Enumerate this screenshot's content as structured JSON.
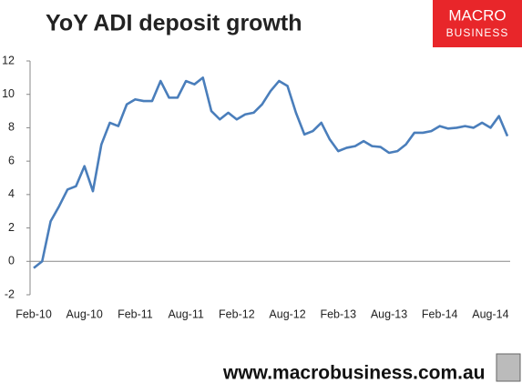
{
  "chart_data": {
    "type": "line",
    "title": "YoY ADI deposit growth",
    "categories": [
      "Feb-10",
      null,
      null,
      null,
      null,
      null,
      "Aug-10",
      null,
      null,
      null,
      null,
      null,
      "Feb-11",
      null,
      null,
      null,
      null,
      null,
      "Aug-11",
      null,
      null,
      null,
      null,
      null,
      "Feb-12",
      null,
      null,
      null,
      null,
      null,
      "Aug-12",
      null,
      null,
      null,
      null,
      null,
      "Feb-13",
      null,
      null,
      null,
      null,
      null,
      "Aug-13",
      null,
      null,
      null,
      null,
      null,
      "Feb-14",
      null,
      null,
      null,
      null,
      null,
      "Aug-14",
      null,
      null
    ],
    "series": [
      {
        "name": "YoY ADI deposit growth",
        "color": "#4a7ebb",
        "values": [
          -0.4,
          0,
          2.4,
          3.3,
          4.3,
          4.5,
          5.7,
          4.2,
          7.0,
          8.3,
          8.1,
          9.4,
          9.7,
          9.6,
          9.6,
          10.8,
          9.8,
          9.8,
          10.8,
          10.6,
          11.0,
          9.0,
          8.5,
          8.9,
          8.5,
          8.8,
          8.9,
          9.4,
          10.2,
          10.8,
          10.5,
          8.9,
          7.6,
          7.8,
          8.3,
          7.3,
          6.6,
          6.8,
          6.9,
          7.2,
          6.9,
          6.85,
          6.5,
          6.6,
          7.0,
          7.7,
          7.7,
          7.8,
          8.1,
          7.95,
          8.0,
          8.1,
          8.0,
          8.3,
          8.0,
          8.7,
          7.5
        ]
      }
    ],
    "ylim": [
      -2,
      12
    ],
    "yticks": [
      -2,
      0,
      2,
      4,
      6,
      8,
      10,
      12
    ],
    "grid": false
  },
  "brand": {
    "line1": "MACRO",
    "line2": "BUSINESS",
    "url": "www.macrobusiness.com.au"
  }
}
